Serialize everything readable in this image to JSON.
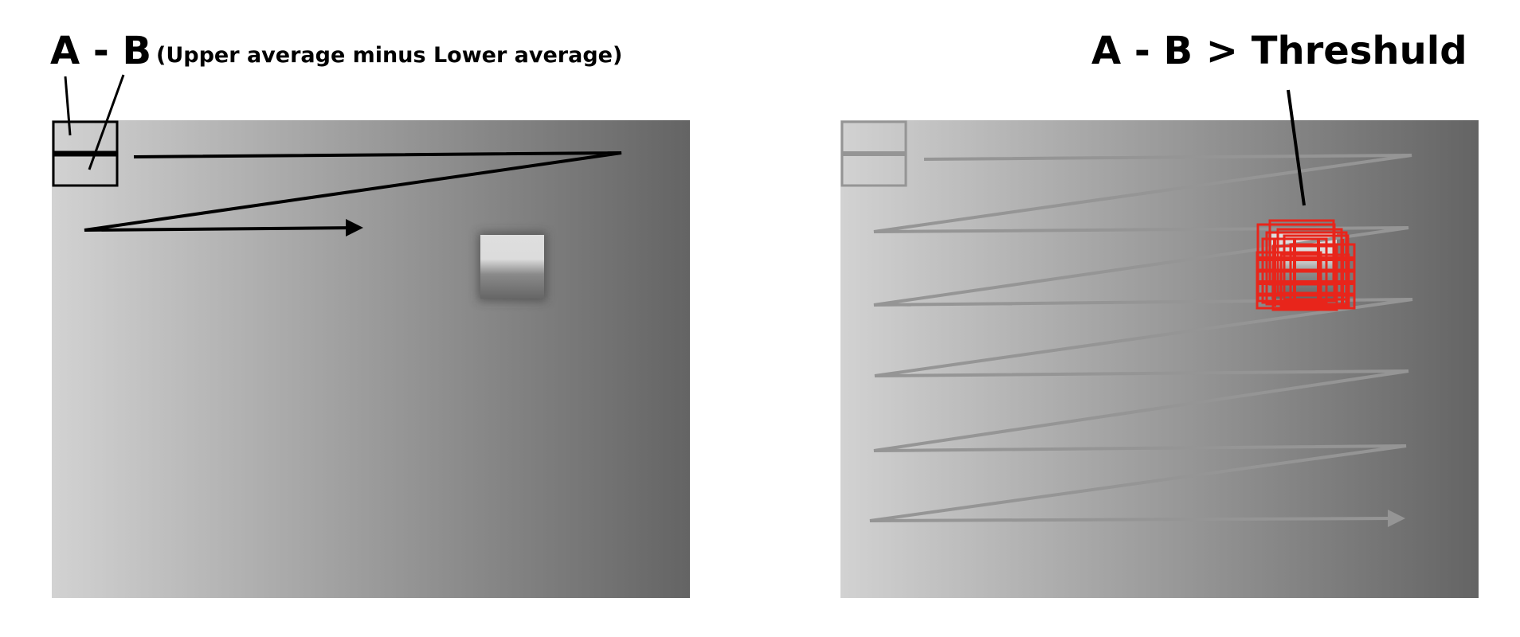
{
  "left_panel": {
    "label_main": "A - B",
    "label_sub": "(Upper average minus Lower average)"
  },
  "right_panel": {
    "label_main": "A - B > Threshuld"
  },
  "colors": {
    "gradient_light": "#d2d2d2",
    "gradient_dark": "#646464",
    "scan_path_left": "#000000",
    "scan_path_right": "#959595",
    "detection": "#e8251b",
    "target_light": "#dedede",
    "target_dark": "#666666"
  }
}
